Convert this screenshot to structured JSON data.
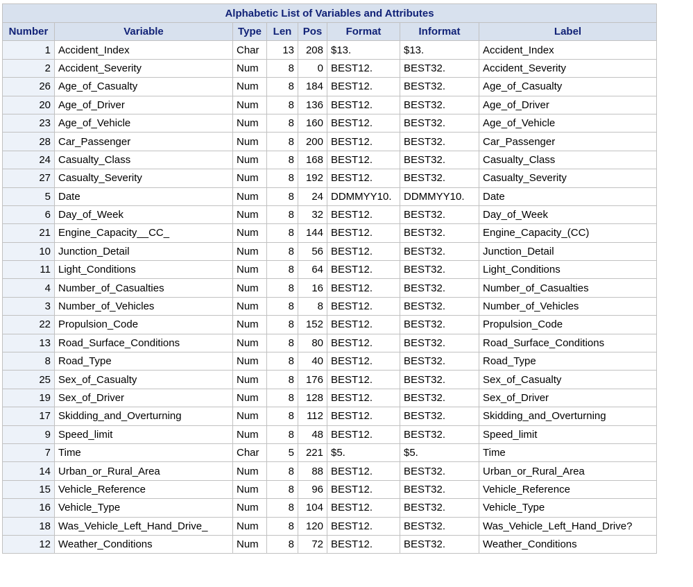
{
  "table": {
    "caption": "Alphabetic List of Variables and Attributes",
    "headers": [
      "Number",
      "Variable",
      "Type",
      "Len",
      "Pos",
      "Format",
      "Informat",
      "Label"
    ],
    "rows": [
      [
        "1",
        "Accident_Index",
        "Char",
        "13",
        "208",
        "$13.",
        "$13.",
        "Accident_Index"
      ],
      [
        "2",
        "Accident_Severity",
        "Num",
        "8",
        "0",
        "BEST12.",
        "BEST32.",
        "Accident_Severity"
      ],
      [
        "26",
        "Age_of_Casualty",
        "Num",
        "8",
        "184",
        "BEST12.",
        "BEST32.",
        "Age_of_Casualty"
      ],
      [
        "20",
        "Age_of_Driver",
        "Num",
        "8",
        "136",
        "BEST12.",
        "BEST32.",
        "Age_of_Driver"
      ],
      [
        "23",
        "Age_of_Vehicle",
        "Num",
        "8",
        "160",
        "BEST12.",
        "BEST32.",
        "Age_of_Vehicle"
      ],
      [
        "28",
        "Car_Passenger",
        "Num",
        "8",
        "200",
        "BEST12.",
        "BEST32.",
        "Car_Passenger"
      ],
      [
        "24",
        "Casualty_Class",
        "Num",
        "8",
        "168",
        "BEST12.",
        "BEST32.",
        "Casualty_Class"
      ],
      [
        "27",
        "Casualty_Severity",
        "Num",
        "8",
        "192",
        "BEST12.",
        "BEST32.",
        "Casualty_Severity"
      ],
      [
        "5",
        "Date",
        "Num",
        "8",
        "24",
        "DDMMYY10.",
        "DDMMYY10.",
        "Date"
      ],
      [
        "6",
        "Day_of_Week",
        "Num",
        "8",
        "32",
        "BEST12.",
        "BEST32.",
        "Day_of_Week"
      ],
      [
        "21",
        "Engine_Capacity__CC_",
        "Num",
        "8",
        "144",
        "BEST12.",
        "BEST32.",
        "Engine_Capacity_(CC)"
      ],
      [
        "10",
        "Junction_Detail",
        "Num",
        "8",
        "56",
        "BEST12.",
        "BEST32.",
        "Junction_Detail"
      ],
      [
        "11",
        "Light_Conditions",
        "Num",
        "8",
        "64",
        "BEST12.",
        "BEST32.",
        "Light_Conditions"
      ],
      [
        "4",
        "Number_of_Casualties",
        "Num",
        "8",
        "16",
        "BEST12.",
        "BEST32.",
        "Number_of_Casualties"
      ],
      [
        "3",
        "Number_of_Vehicles",
        "Num",
        "8",
        "8",
        "BEST12.",
        "BEST32.",
        "Number_of_Vehicles"
      ],
      [
        "22",
        "Propulsion_Code",
        "Num",
        "8",
        "152",
        "BEST12.",
        "BEST32.",
        "Propulsion_Code"
      ],
      [
        "13",
        "Road_Surface_Conditions",
        "Num",
        "8",
        "80",
        "BEST12.",
        "BEST32.",
        "Road_Surface_Conditions"
      ],
      [
        "8",
        "Road_Type",
        "Num",
        "8",
        "40",
        "BEST12.",
        "BEST32.",
        "Road_Type"
      ],
      [
        "25",
        "Sex_of_Casualty",
        "Num",
        "8",
        "176",
        "BEST12.",
        "BEST32.",
        "Sex_of_Casualty"
      ],
      [
        "19",
        "Sex_of_Driver",
        "Num",
        "8",
        "128",
        "BEST12.",
        "BEST32.",
        "Sex_of_Driver"
      ],
      [
        "17",
        "Skidding_and_Overturning",
        "Num",
        "8",
        "112",
        "BEST12.",
        "BEST32.",
        "Skidding_and_Overturning"
      ],
      [
        "9",
        "Speed_limit",
        "Num",
        "8",
        "48",
        "BEST12.",
        "BEST32.",
        "Speed_limit"
      ],
      [
        "7",
        "Time",
        "Char",
        "5",
        "221",
        "$5.",
        "$5.",
        "Time"
      ],
      [
        "14",
        "Urban_or_Rural_Area",
        "Num",
        "8",
        "88",
        "BEST12.",
        "BEST32.",
        "Urban_or_Rural_Area"
      ],
      [
        "15",
        "Vehicle_Reference",
        "Num",
        "8",
        "96",
        "BEST12.",
        "BEST32.",
        "Vehicle_Reference"
      ],
      [
        "16",
        "Vehicle_Type",
        "Num",
        "8",
        "104",
        "BEST12.",
        "BEST32.",
        "Vehicle_Type"
      ],
      [
        "18",
        "Was_Vehicle_Left_Hand_Drive_",
        "Num",
        "8",
        "120",
        "BEST12.",
        "BEST32.",
        "Was_Vehicle_Left_Hand_Drive?"
      ],
      [
        "12",
        "Weather_Conditions",
        "Num",
        "8",
        "72",
        "BEST12.",
        "BEST32.",
        "Weather_Conditions"
      ]
    ]
  },
  "colors": {
    "header_bg": "#d8e1ee",
    "header_text": "#112277",
    "number_col_bg": "#edf2f9",
    "border": "#c1c1c1"
  }
}
